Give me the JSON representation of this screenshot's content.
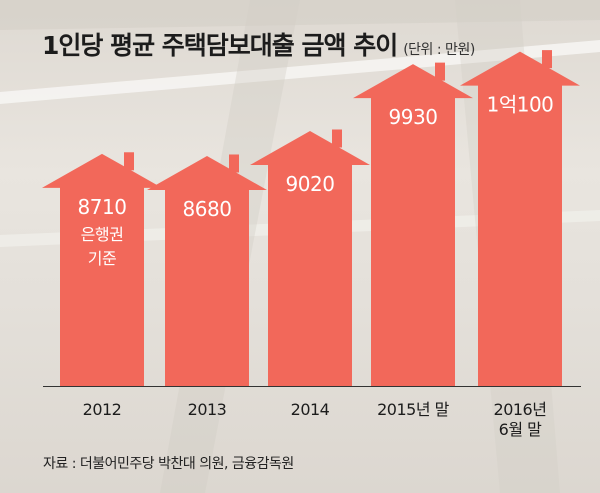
{
  "title": "1인당 평균 주택담보대출 금액 추이",
  "unit": "(단위 : 만원)",
  "source": "자료 : 더불어민주당 박찬대 의원, 금융감독원",
  "colors": {
    "arrow": "#f2685a",
    "text": "#ffffff",
    "baseline": "#333333"
  },
  "chart_data": {
    "type": "bar",
    "style": "house-shaped arrows",
    "categories": [
      [
        "2012"
      ],
      [
        "2013"
      ],
      [
        "2014"
      ],
      [
        "2015년 말"
      ],
      [
        "2016년",
        "6월 말"
      ]
    ],
    "values": [
      8710,
      8680,
      9020,
      9930,
      10100
    ],
    "value_labels": [
      "8710",
      "8680",
      "9020",
      "9930",
      "1억100"
    ],
    "annotations": [
      {
        "index": 0,
        "lines": [
          "은행권",
          "기준"
        ]
      }
    ],
    "ylabel": "",
    "ylim": [
      0,
      11000
    ],
    "grid": false,
    "legend": "none"
  }
}
